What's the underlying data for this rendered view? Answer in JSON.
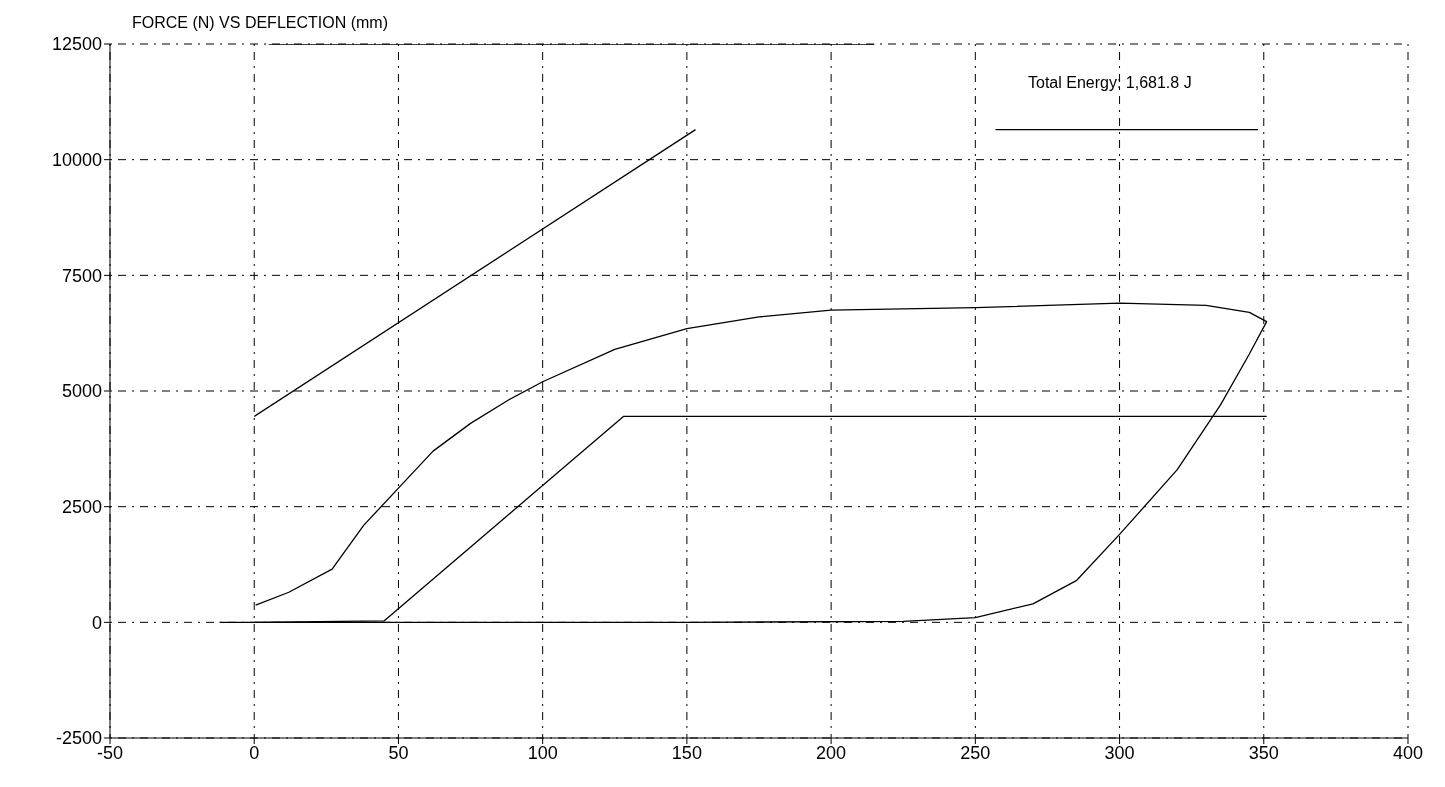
{
  "chart_data": {
    "type": "line",
    "title": "FORCE (N) VS DEFLECTION (mm)",
    "annotations": [
      "Total Energy: 1,681.8 J"
    ],
    "xlim": [
      -50,
      400
    ],
    "xticks": [
      -50,
      0,
      50,
      100,
      150,
      200,
      250,
      300,
      350,
      400
    ],
    "ylim": [
      -2500,
      12500
    ],
    "yticks": [
      -2500,
      0,
      2500,
      5000,
      7500,
      10000,
      12500
    ],
    "grid": true,
    "marker": "none",
    "line_style": "solid",
    "series": [
      {
        "color": "#000000",
        "x": [
          0,
          153
        ],
        "values": [
          4450,
          10650
        ]
      },
      {
        "color": "#000000",
        "x": [
          0.5,
          12,
          27,
          38,
          50,
          62,
          75,
          88,
          100,
          125,
          150,
          175,
          200,
          250,
          300,
          330,
          345,
          351,
          345,
          335,
          320,
          300,
          285,
          270,
          250,
          225,
          150,
          50,
          0,
          -12
        ],
        "values": [
          370,
          650,
          1150,
          2100,
          2900,
          3700,
          4300,
          4800,
          5200,
          5900,
          6350,
          6600,
          6750,
          6800,
          6900,
          6850,
          6700,
          6500,
          5800,
          4700,
          3300,
          1900,
          900,
          400,
          100,
          20,
          0,
          0,
          0,
          0
        ]
      },
      {
        "color": "#000000",
        "x": [
          0,
          45,
          128,
          351
        ],
        "values": [
          0,
          30,
          4450,
          4450
        ]
      },
      {
        "color": "#000000",
        "x": [
          257,
          348
        ],
        "values": [
          10650,
          10650
        ]
      },
      {
        "color": "#000000",
        "x": [
          5,
          215
        ],
        "values": [
          12500,
          12500
        ]
      }
    ]
  }
}
